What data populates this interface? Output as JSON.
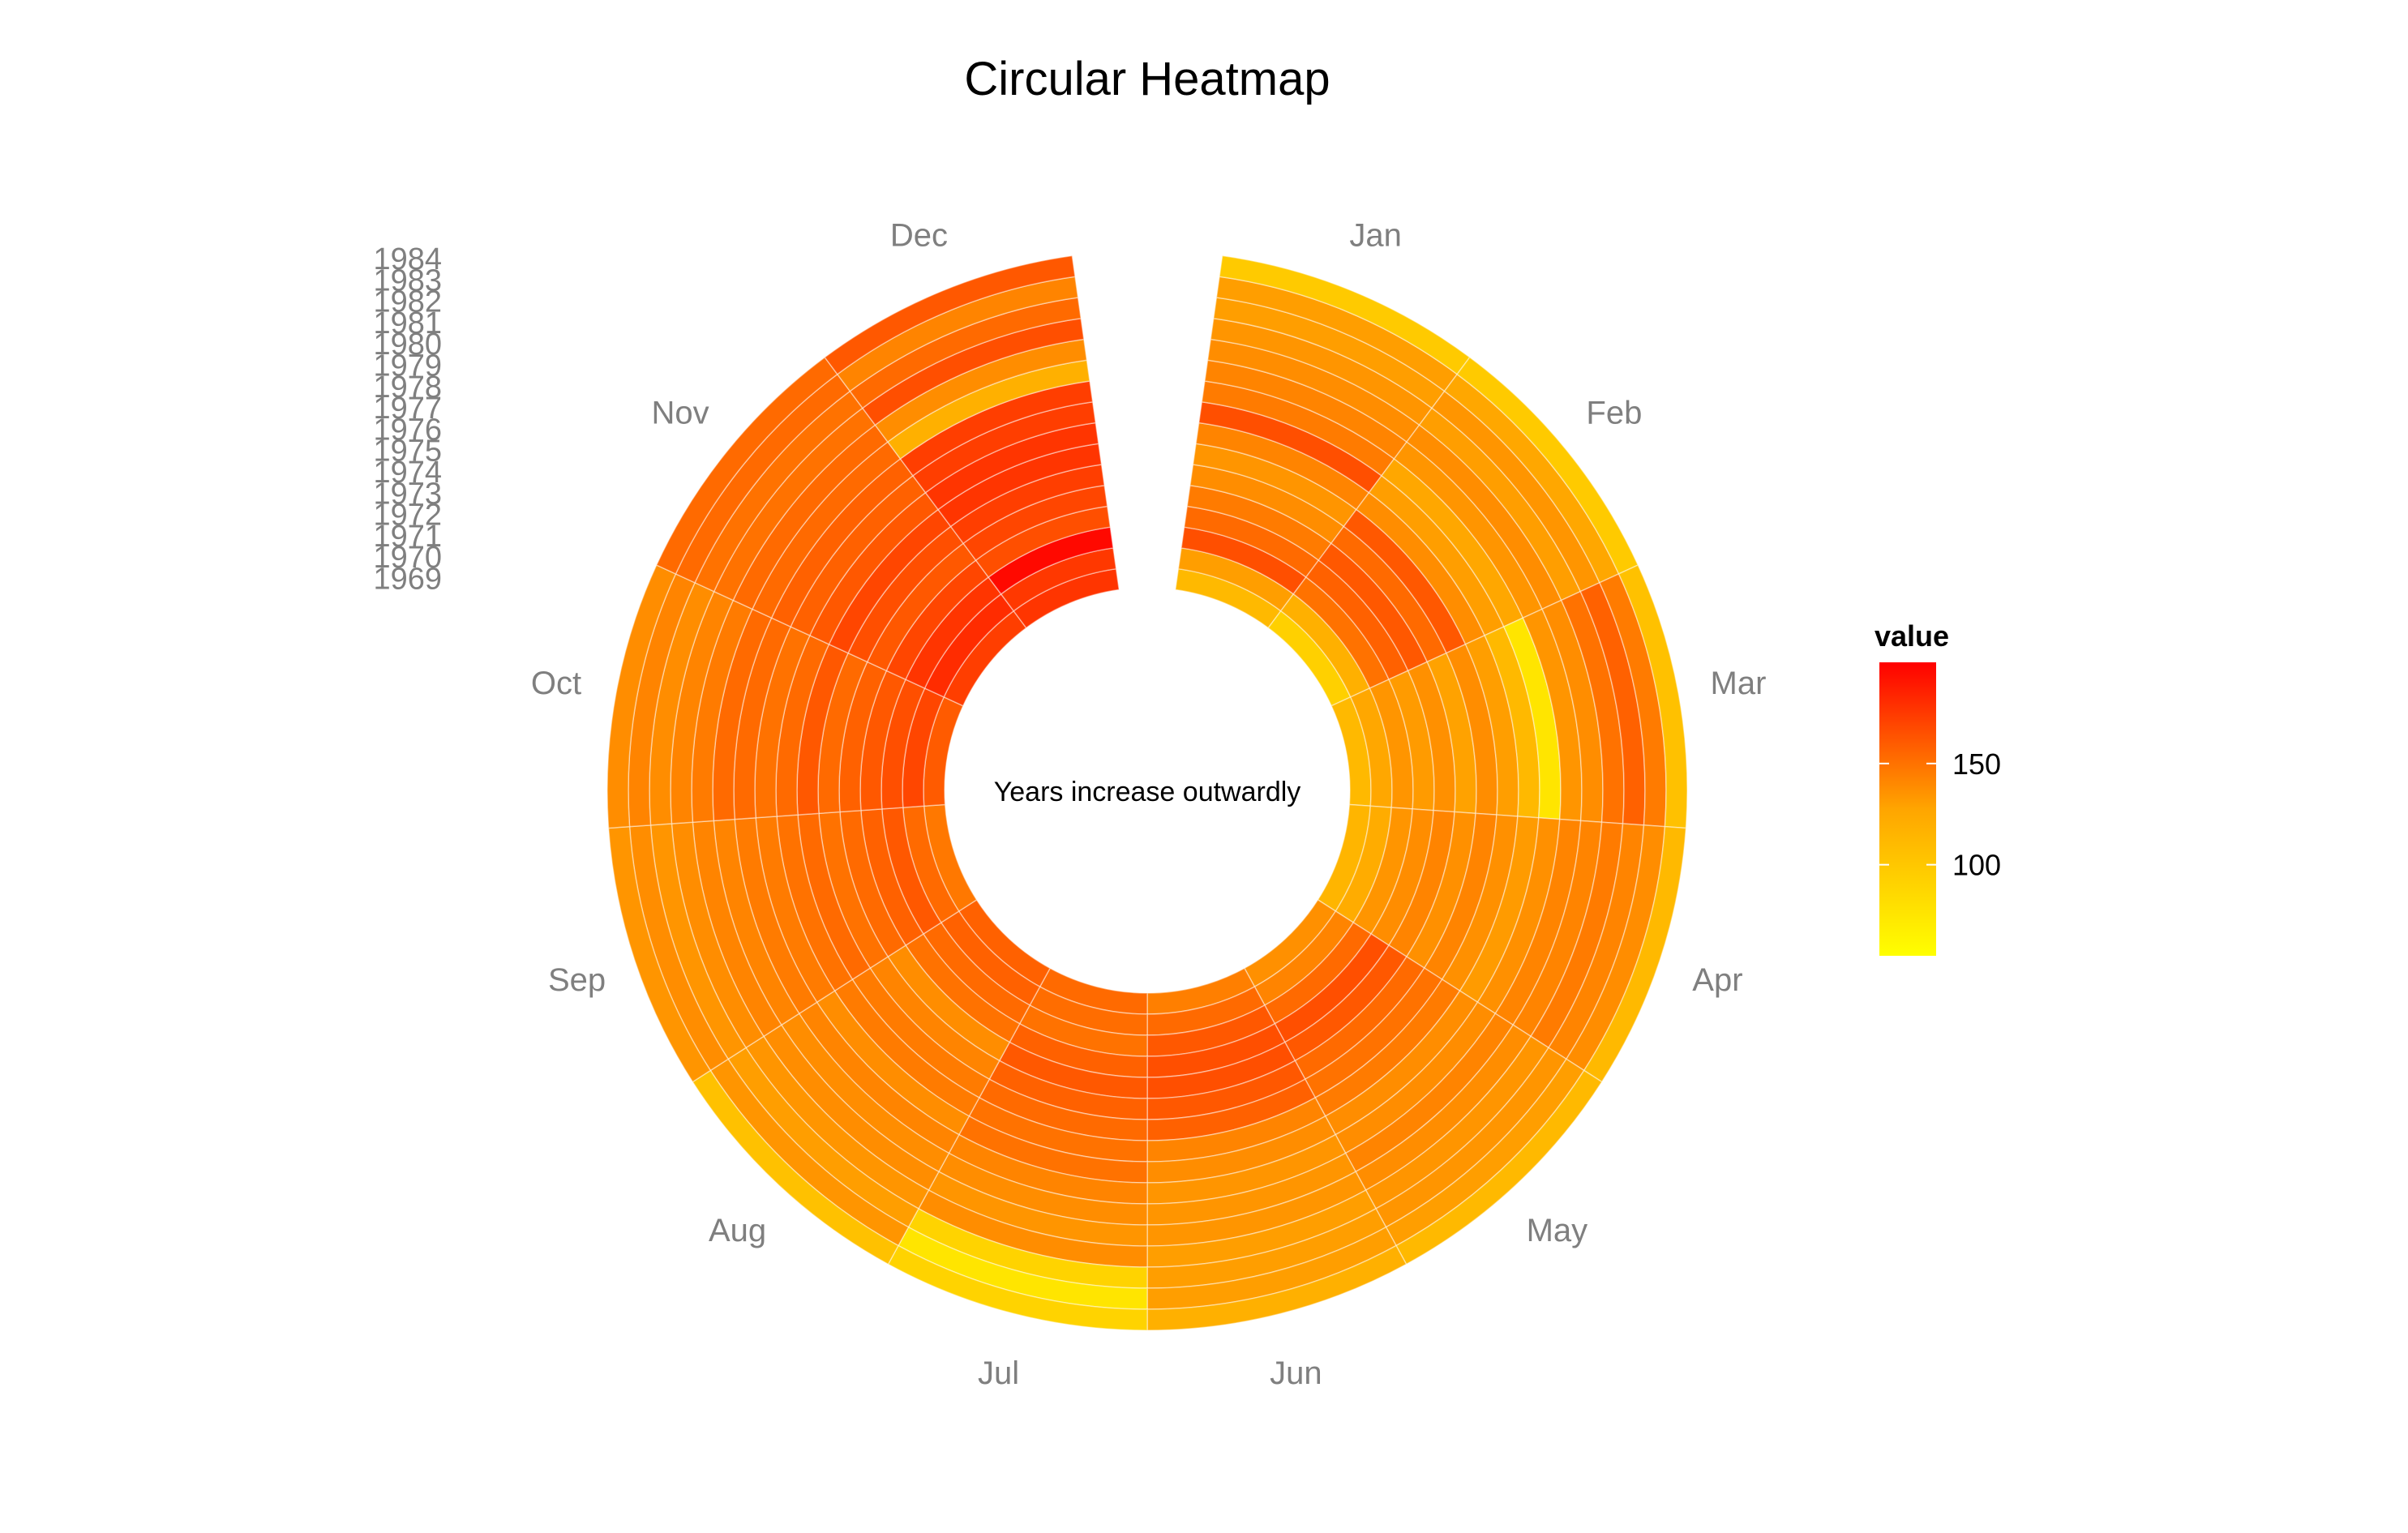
{
  "chart_data": {
    "type": "heatmap",
    "subtype": "circular",
    "title": "Circular Heatmap",
    "center_text": "Years increase outwardly",
    "months": [
      "Jan",
      "Feb",
      "Mar",
      "Apr",
      "May",
      "Jun",
      "Jul",
      "Aug",
      "Sep",
      "Oct",
      "Nov",
      "Dec"
    ],
    "years": [
      "1969",
      "1970",
      "1971",
      "1972",
      "1973",
      "1974",
      "1975",
      "1976",
      "1977",
      "1978",
      "1979",
      "1980",
      "1981",
      "1982",
      "1983",
      "1984"
    ],
    "values": [
      [
        95,
        82,
        95,
        97,
        118,
        128,
        140,
        145,
        132,
        148,
        165,
        170
      ],
      [
        110,
        100,
        105,
        102,
        125,
        140,
        138,
        145,
        140,
        160,
        175,
        168
      ],
      [
        155,
        135,
        115,
        115,
        140,
        150,
        135,
        140,
        150,
        155,
        170,
        195
      ],
      [
        140,
        145,
        112,
        120,
        155,
        155,
        145,
        135,
        145,
        150,
        160,
        155
      ],
      [
        130,
        150,
        118,
        125,
        150,
        155,
        150,
        120,
        140,
        145,
        150,
        160
      ],
      [
        120,
        140,
        108,
        118,
        140,
        150,
        145,
        125,
        135,
        140,
        155,
        165
      ],
      [
        115,
        150,
        120,
        125,
        135,
        145,
        140,
        130,
        140,
        150,
        160,
        170
      ],
      [
        125,
        120,
        110,
        118,
        130,
        125,
        135,
        130,
        135,
        140,
        150,
        170
      ],
      [
        155,
        110,
        95,
        112,
        120,
        120,
        135,
        120,
        130,
        135,
        145,
        165
      ],
      [
        130,
        105,
        70,
        118,
        120,
        115,
        125,
        125,
        130,
        140,
        145,
        165
      ],
      [
        125,
        115,
        115,
        125,
        125,
        115,
        120,
        120,
        125,
        140,
        140,
        100
      ],
      [
        120,
        120,
        120,
        125,
        120,
        115,
        115,
        120,
        125,
        130,
        140,
        120
      ],
      [
        115,
        110,
        135,
        130,
        115,
        110,
        120,
        115,
        120,
        125,
        135,
        155
      ],
      [
        110,
        115,
        145,
        125,
        115,
        110,
        80,
        110,
        115,
        120,
        135,
        140
      ],
      [
        110,
        105,
        130,
        120,
        110,
        110,
        70,
        115,
        120,
        125,
        140,
        125
      ],
      [
        85,
        85,
        90,
        95,
        95,
        100,
        80,
        90,
        115,
        120,
        140,
        150
      ]
    ],
    "color_scale": {
      "low": "#ffff00",
      "high": "#ff0000",
      "min": 55,
      "max": 200
    },
    "legend": {
      "title": "value",
      "ticks": [
        100,
        150
      ],
      "placement": "right"
    }
  }
}
